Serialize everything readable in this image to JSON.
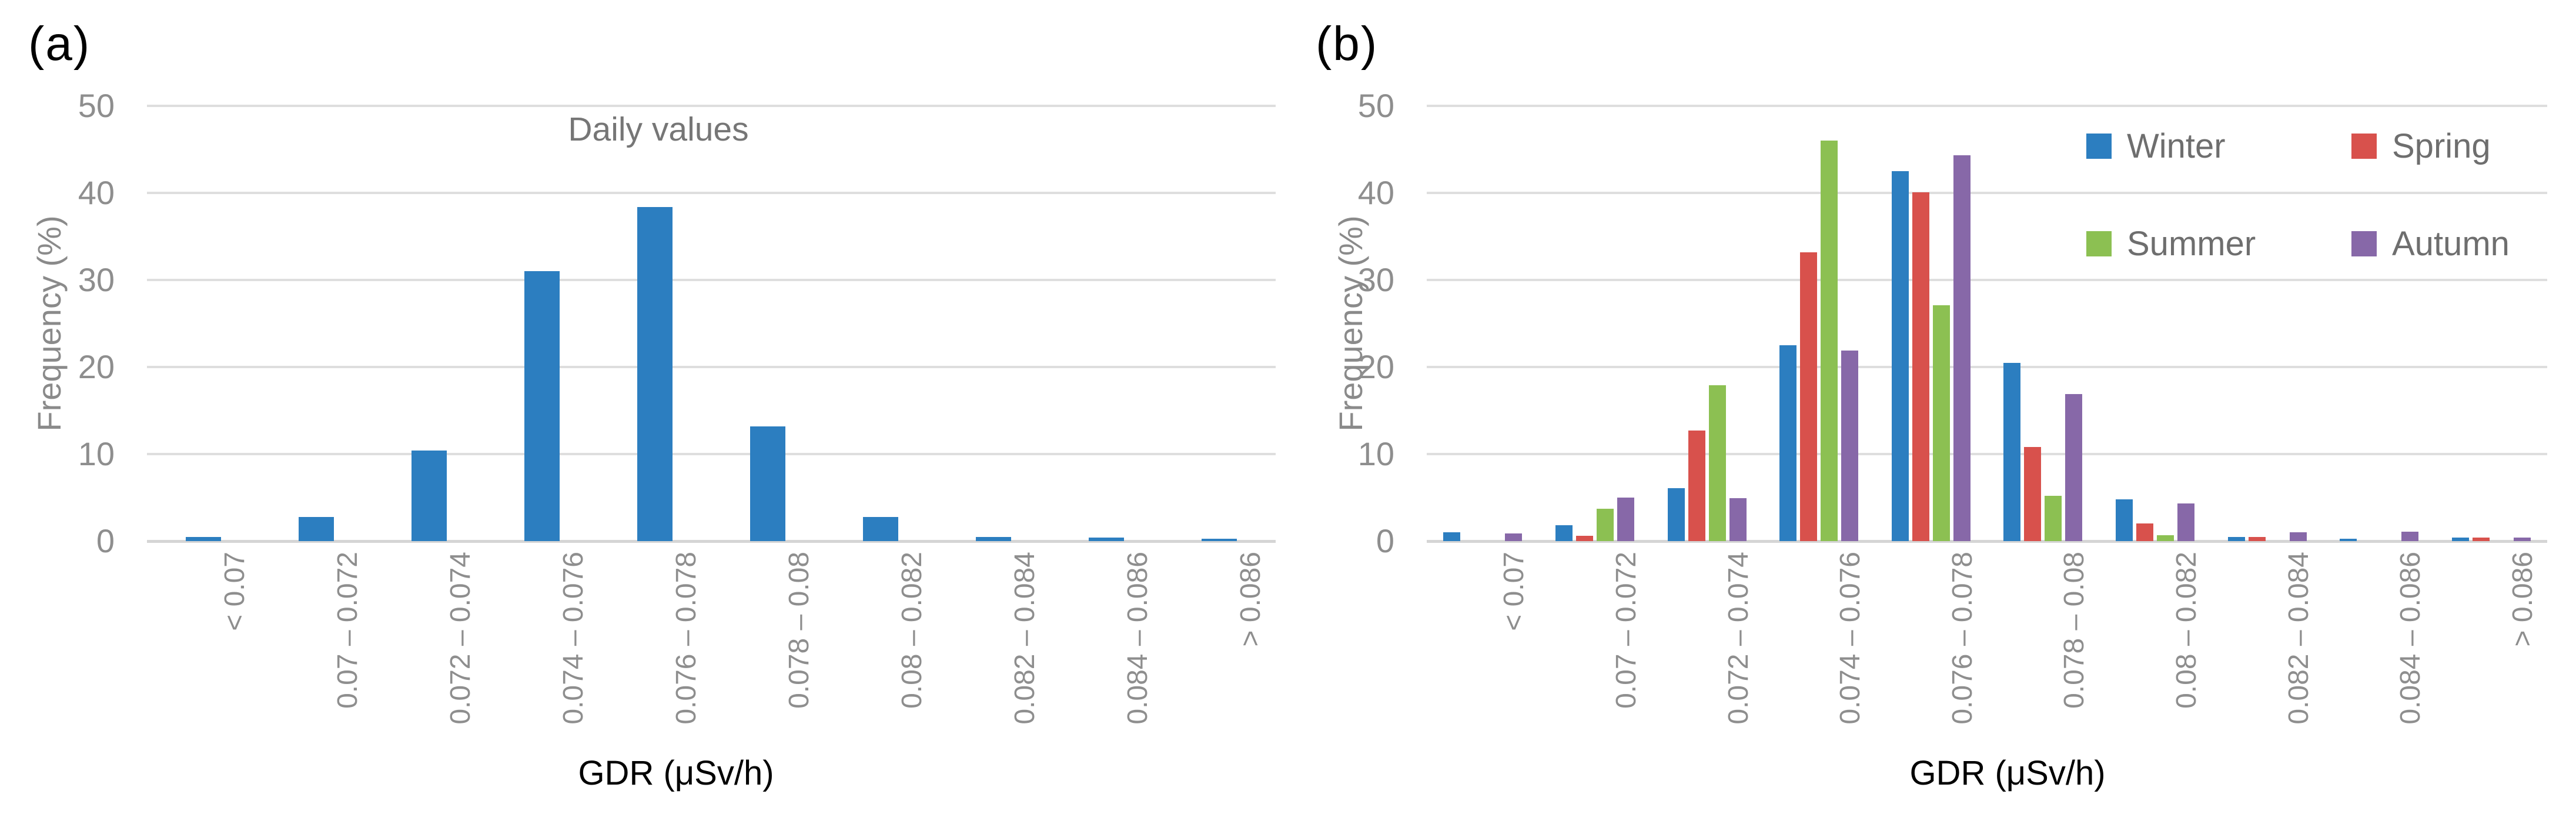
{
  "figure": {
    "background": "#FFFFFF"
  },
  "style_tokens": {
    "gridline_color": "#DEDEDE",
    "axis_line_color": "#D5D5D5",
    "tick_text_color": "#8E8E8E",
    "chart_title_color": "#767676",
    "y_title_color": "#8A8A8A",
    "x_title_color": "#000000",
    "legend_text_color": "#6E6E6E"
  },
  "chart_data": [
    {
      "type": "bar",
      "panel_label": "(a)",
      "title": "Daily values",
      "xlabel": "GDR (μSv/h)",
      "ylabel": "Frequency (%)",
      "ylim": [
        0,
        50
      ],
      "yticks": [
        0,
        10,
        20,
        30,
        40,
        50
      ],
      "grid": true,
      "legend": false,
      "categories": [
        "< 0.07",
        "0.07 – 0.072",
        "0.072 – 0.074",
        "0.074 – 0.076",
        "0.076 – 0.078",
        "0.078 – 0.08",
        "0.08 – 0.082",
        "0.082 – 0.084",
        "0.084 – 0.086",
        "> 0.086"
      ],
      "series": [
        {
          "name": "Daily values",
          "color": "#2C7EC0",
          "values": [
            0.5,
            2.8,
            10.4,
            31.0,
            38.4,
            13.2,
            2.8,
            0.5,
            0.4,
            0.3
          ]
        }
      ]
    },
    {
      "type": "bar",
      "panel_label": "(b)",
      "title": "",
      "xlabel": "GDR (μSv/h)",
      "ylabel": "Frequency (%)",
      "ylim": [
        0,
        50
      ],
      "yticks": [
        0,
        10,
        20,
        30,
        40,
        50
      ],
      "grid": true,
      "legend": true,
      "legend_position": "inside-top-right",
      "categories": [
        "< 0.07",
        "0.07 – 0.072",
        "0.072 – 0.074",
        "0.074 – 0.076",
        "0.076 – 0.078",
        "0.078 – 0.08",
        "0.08 – 0.082",
        "0.082 – 0.084",
        "0.084 – 0.086",
        "> 0.086"
      ],
      "series": [
        {
          "name": "Winter",
          "color": "#2C7EC0",
          "values": [
            1.0,
            1.8,
            6.1,
            22.5,
            42.5,
            20.5,
            4.8,
            0.5,
            0.3,
            0.4
          ]
        },
        {
          "name": "Spring",
          "color": "#D8514C",
          "values": [
            0,
            0.6,
            12.7,
            33.2,
            40.1,
            10.8,
            2.0,
            0.5,
            0,
            0.4
          ]
        },
        {
          "name": "Summer",
          "color": "#8CC052",
          "values": [
            0,
            3.7,
            17.9,
            46.0,
            27.1,
            5.2,
            0.7,
            0,
            0,
            0
          ]
        },
        {
          "name": "Autumn",
          "color": "#8768A8",
          "values": [
            0.9,
            5.0,
            4.9,
            21.9,
            44.3,
            16.9,
            4.3,
            1.0,
            1.1,
            0.4
          ]
        }
      ]
    }
  ]
}
